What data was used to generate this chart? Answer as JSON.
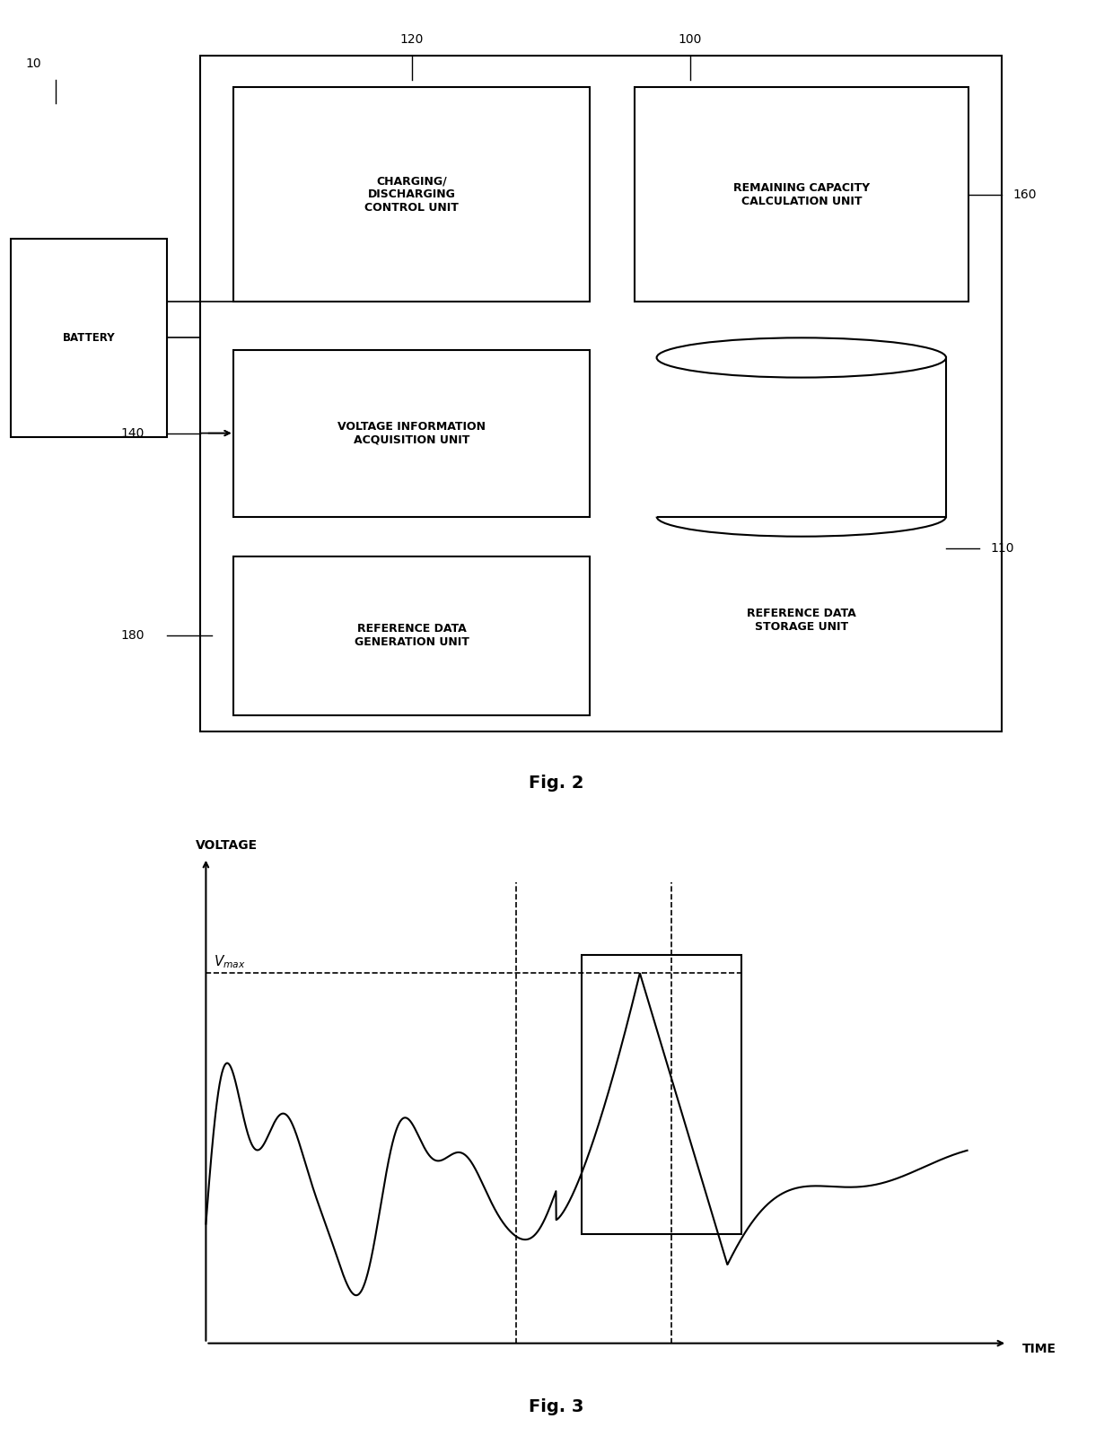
{
  "bg_color": "#ffffff",
  "fig_width": 12.4,
  "fig_height": 16.1,
  "fig2_label": "Fig. 2",
  "fig3_label": "Fig. 3",
  "battery_label": "BATTERY",
  "battery_ref": "10",
  "system_ref": "100",
  "charging_label": "CHARGING/\nDISCHARGING\nCONTROL UNIT",
  "charging_ref": "120",
  "voltage_label": "VOLTAGE INFORMATION\nACQUISITION UNIT",
  "voltage_ref": "140",
  "refdata_gen_label": "REFERENCE DATA\nGENERATION UNIT",
  "refdata_gen_ref": "180",
  "remaining_label": "REMAINING CAPACITY\nCALCULATION UNIT",
  "remaining_ref": "160",
  "refdatastorage_label": "REFERENCE DATA\nSTORAGE UNIT",
  "refdatastorage_ref": "110",
  "voltage_axis_label": "VOLTAGE",
  "time_axis_label": "TIME",
  "vmax_label": "$V_{max}$"
}
